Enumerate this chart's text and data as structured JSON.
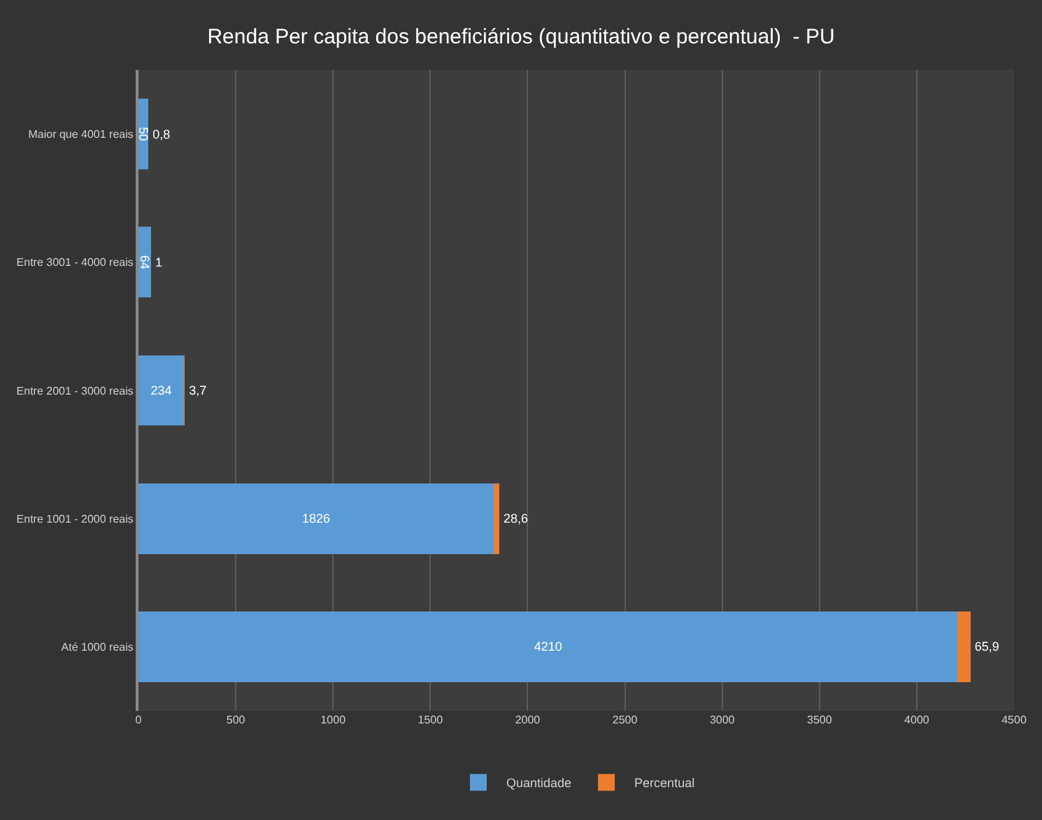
{
  "chart_data": {
    "type": "bar",
    "orientation": "horizontal",
    "stacked": true,
    "title": "Renda Per capita dos beneficiários (quantitativo e percentual)  - PU",
    "categories": [
      "Maior que 4001 reais",
      "Entre 3001 - 4000 reais",
      "Entre 2001 - 3000 reais",
      "Entre 1001 - 2000 reais",
      "Até 1000 reais"
    ],
    "series": [
      {
        "name": "Quantidade",
        "color": "#5b9bd5",
        "values": [
          50,
          64,
          234,
          1826,
          4210
        ],
        "value_labels": [
          "50",
          "64",
          "234",
          "1826",
          "4210"
        ]
      },
      {
        "name": "Percentual",
        "color": "#ed7d31",
        "values": [
          0.8,
          1,
          3.7,
          28.6,
          65.9
        ],
        "value_labels": [
          "0,8",
          "1",
          "3,7",
          "28,6",
          "65,9"
        ]
      }
    ],
    "xlim": [
      0,
      4500
    ],
    "xticks": [
      0,
      500,
      1000,
      1500,
      2000,
      2500,
      3000,
      3500,
      4000,
      4500
    ],
    "grid": "x",
    "legend": "bottom"
  }
}
